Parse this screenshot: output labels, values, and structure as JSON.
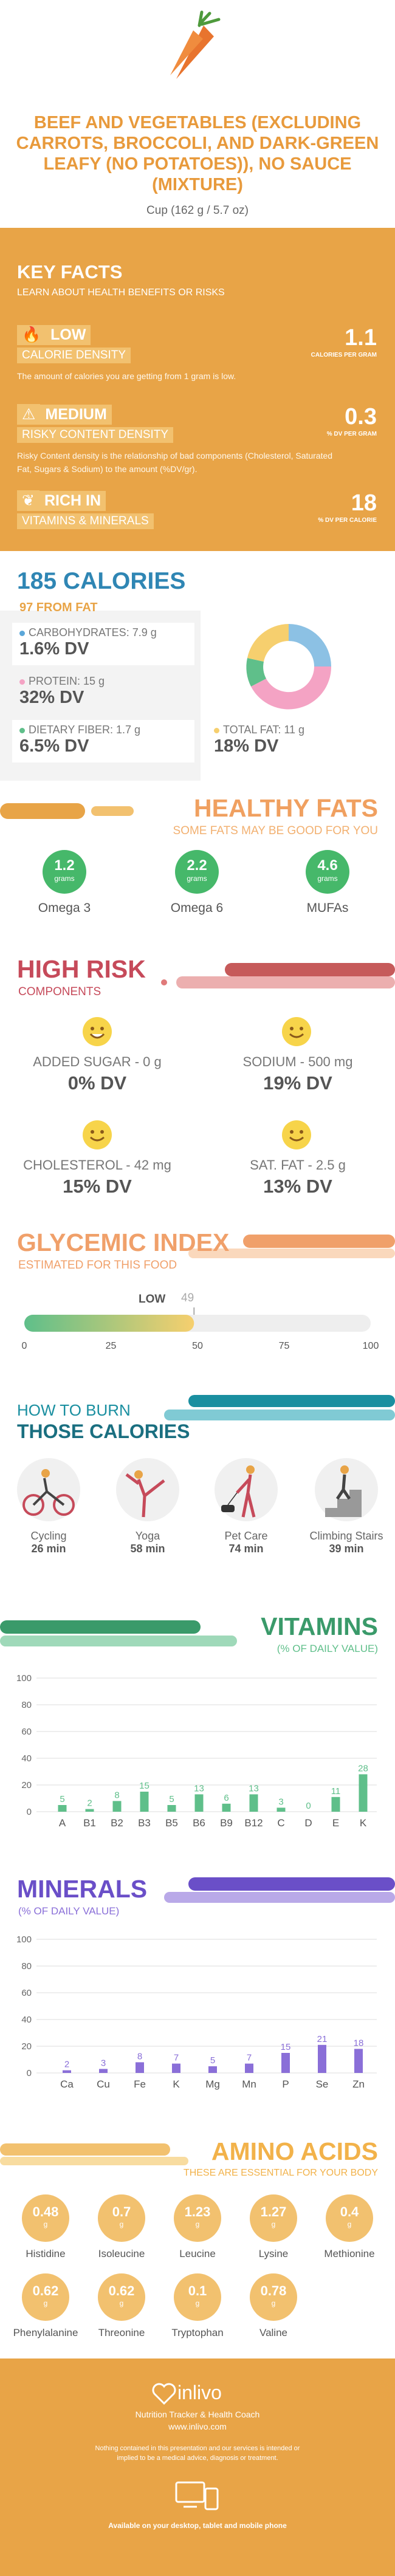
{
  "header": {
    "title": "BEEF AND VEGETABLES (EXCLUDING CARROTS, BROCCOLI, AND DARK-GREEN LEAFY (NO POTATOES)), NO SAUCE (MIXTURE)",
    "serving": "Cup (162 g / 5.7 oz)"
  },
  "key_facts": {
    "title": "KEY FACTS",
    "subtitle": "LEARN ABOUT HEALTH BENEFITS OR RISKS",
    "items": [
      {
        "level": "LOW",
        "label": "CALORIE DENSITY",
        "desc": "The amount of calories you are getting from 1 gram is low.",
        "value": "1.1",
        "unit": "CALORIES PER GRAM"
      },
      {
        "level": "MEDIUM",
        "label": "RISKY CONTENT DENSITY",
        "desc": "Risky Content density is the relationship of bad components (Cholesterol, Saturated Fat, Sugars & Sodium) to the amount (%DV/gr).",
        "value": "0.3",
        "unit": "% DV PER GRAM"
      },
      {
        "level": "RICH IN",
        "label": "VITAMINS & MINERALS",
        "desc": "",
        "value": "18",
        "unit": "% DV PER CALORIE"
      }
    ]
  },
  "calories": {
    "title": "185 CALORIES",
    "from_fat": "97 FROM FAT",
    "nutrients": [
      {
        "label": "CARBOHYDRATES: 7.9 g",
        "value": "1.6% DV",
        "color": "#5ba7d9"
      },
      {
        "label": "PROTEIN: 15 g",
        "value": "32% DV",
        "color": "#f4a3c4"
      },
      {
        "label": "DIETARY FIBER: 1.7 g",
        "value": "6.5% DV",
        "color": "#5fbf8a"
      },
      {
        "label": "TOTAL FAT: 11 g",
        "value": "18% DV",
        "color": "#f6cf6e"
      }
    ]
  },
  "fats": {
    "title": "HEALTHY FATS",
    "subtitle": "SOME FATS MAY BE GOOD FOR YOU",
    "items": [
      {
        "value": "1.2",
        "unit": "grams",
        "label": "Omega 3"
      },
      {
        "value": "2.2",
        "unit": "grams",
        "label": "Omega 6"
      },
      {
        "value": "4.6",
        "unit": "grams",
        "label": "MUFAs"
      }
    ]
  },
  "risk": {
    "title": "HIGH RISK",
    "subtitle": "COMPONENTS",
    "items": [
      {
        "label": "ADDED SUGAR - 0 g",
        "value": "0% DV"
      },
      {
        "label": "SODIUM - 500 mg",
        "value": "19% DV"
      },
      {
        "label": "CHOLESTEROL - 42 mg",
        "value": "15% DV"
      },
      {
        "label": "SAT. FAT - 2.5 g",
        "value": "13% DV"
      }
    ]
  },
  "glycemic": {
    "title": "GLYCEMIC INDEX",
    "subtitle": "ESTIMATED FOR THIS FOOD",
    "level": "LOW",
    "value": "49",
    "value_num": 49,
    "ticks": [
      "0",
      "25",
      "50",
      "75",
      "100"
    ]
  },
  "burn": {
    "title_1": "HOW TO BURN",
    "title_2": "THOSE CALORIES",
    "activities": [
      {
        "label": "Cycling",
        "minutes": "26 min"
      },
      {
        "label": "Yoga",
        "minutes": "58 min"
      },
      {
        "label": "Pet Care",
        "minutes": "74 min"
      },
      {
        "label": "Climbing Stairs",
        "minutes": "39 min"
      }
    ]
  },
  "vitamins": {
    "title": "VITAMINS",
    "subtitle": "(% OF DAILY VALUE)"
  },
  "minerals": {
    "title": "MINERALS",
    "subtitle": "(% OF DAILY VALUE)"
  },
  "chart_data": [
    {
      "type": "bar",
      "categories": [
        "A",
        "B1",
        "B2",
        "B3",
        "B5",
        "B6",
        "B9",
        "B12",
        "C",
        "D",
        "E",
        "K"
      ],
      "values": [
        5,
        2,
        8,
        15,
        5,
        13,
        6,
        13,
        3,
        0,
        11,
        28
      ],
      "value_labels": [
        "5",
        "2",
        "8",
        "15",
        "5",
        "13",
        "6",
        "13",
        "3",
        "0",
        "11",
        "28"
      ],
      "ylim": [
        0,
        100
      ],
      "yticks": [
        "0",
        "20",
        "40",
        "60",
        "80",
        "100"
      ],
      "color": "#5fbf8a"
    },
    {
      "type": "bar",
      "categories": [
        "Ca",
        "Cu",
        "Fe",
        "K",
        "Mg",
        "Mn",
        "P",
        "Se",
        "Zn"
      ],
      "values": [
        2,
        3,
        8,
        7,
        5,
        7,
        15,
        21,
        18
      ],
      "value_labels": [
        "2",
        "3",
        "8",
        "7",
        "5",
        "7",
        "15",
        "21",
        "18"
      ],
      "ylim": [
        0,
        100
      ],
      "yticks": [
        "0",
        "20",
        "40",
        "60",
        "80",
        "100"
      ],
      "color": "#8a6fd8"
    }
  ],
  "amino": {
    "title": "AMINO ACIDS",
    "subtitle": "THESE ARE ESSENTIAL FOR YOUR BODY",
    "items": [
      {
        "value": "0.48",
        "unit": "g",
        "label": "Histidine"
      },
      {
        "value": "0.7",
        "unit": "g",
        "label": "Isoleucine"
      },
      {
        "value": "1.23",
        "unit": "g",
        "label": "Leucine"
      },
      {
        "value": "1.27",
        "unit": "g",
        "label": "Lysine"
      },
      {
        "value": "0.4",
        "unit": "g",
        "label": "Methionine"
      },
      {
        "value": "0.62",
        "unit": "g",
        "label": "Phenylalanine"
      },
      {
        "value": "0.62",
        "unit": "g",
        "label": "Threonine"
      },
      {
        "value": "0.1",
        "unit": "g",
        "label": "Tryptophan"
      },
      {
        "value": "0.78",
        "unit": "g",
        "label": "Valine"
      }
    ]
  },
  "footer": {
    "brand": "inlivo",
    "tagline": "Nutrition Tracker & Health Coach",
    "url": "www.inlivo.com",
    "disclaimer": "Nothing contained in this presentation and our services is intended or implied to be a medical advice, diagnosis or treatment.",
    "available": "Available on your desktop, tablet and mobile phone"
  }
}
